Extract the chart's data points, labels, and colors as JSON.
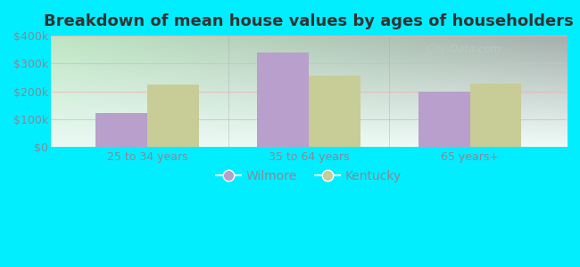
{
  "title": "Breakdown of mean house values by ages of householders",
  "categories": [
    "25 to 34 years",
    "35 to 64 years",
    "65 years+"
  ],
  "wilmore_values": [
    120000,
    340000,
    200000
  ],
  "kentucky_values": [
    225000,
    255000,
    228000
  ],
  "wilmore_color": "#b89fcc",
  "kentucky_color": "#c8cc96",
  "ylim": [
    0,
    400000
  ],
  "yticks": [
    0,
    100000,
    200000,
    300000,
    400000
  ],
  "ytick_labels": [
    "$0",
    "$100k",
    "$200k",
    "$300k",
    "$400k"
  ],
  "bg_outer": "#00eeff",
  "bg_grad_left": "#c8eec0",
  "bg_grad_right": "#eef8f4",
  "grid_color": "#f0b0b8",
  "legend_labels": [
    "Wilmore",
    "Kentucky"
  ],
  "bar_width": 0.32,
  "title_fontsize": 13,
  "tick_fontsize": 9,
  "legend_fontsize": 10,
  "tick_color": "#888899",
  "watermark": "City-Data.com"
}
